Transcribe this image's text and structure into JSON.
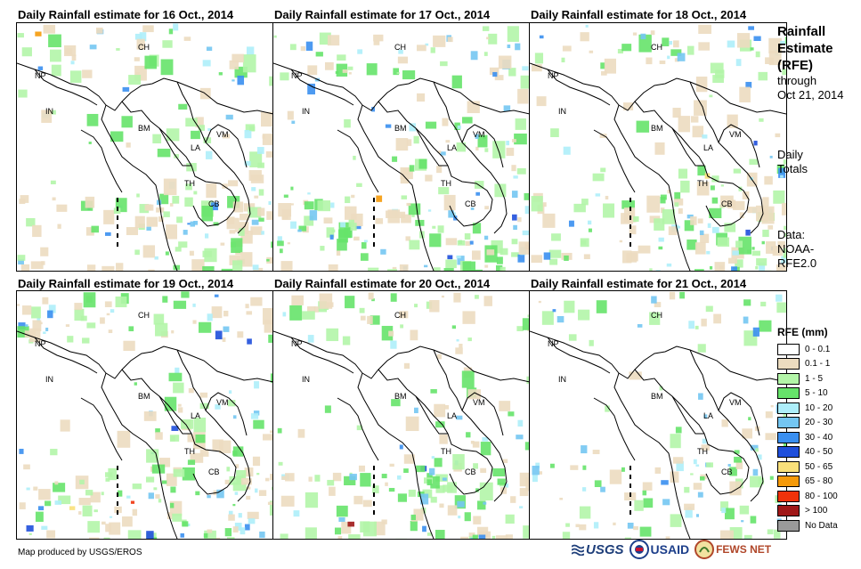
{
  "panels": [
    {
      "title": "Daily Rainfall estimate for 16 Oct., 2014",
      "seed": 16,
      "intensity": 0.9
    },
    {
      "title": "Daily Rainfall estimate for 17 Oct., 2014",
      "seed": 17,
      "intensity": 1.0
    },
    {
      "title": "Daily Rainfall estimate for 18 Oct., 2014",
      "seed": 18,
      "intensity": 0.95
    },
    {
      "title": "Daily Rainfall estimate for 19 Oct., 2014",
      "seed": 19,
      "intensity": 1.0
    },
    {
      "title": "Daily Rainfall estimate for 20 Oct., 2014",
      "seed": 20,
      "intensity": 0.85
    },
    {
      "title": "Daily Rainfall estimate for 21 Oct., 2014",
      "seed": 21,
      "intensity": 0.6
    }
  ],
  "country_labels": [
    "CH",
    "NP",
    "IN",
    "BM",
    "LA",
    "VM",
    "TH",
    "CB"
  ],
  "side": {
    "title_lines": [
      "Rainfall",
      "Estimate",
      "(RFE)"
    ],
    "through": "through",
    "date": "Oct 21, 2014",
    "totals_lines": [
      "Daily",
      "Totals"
    ],
    "data_lines": [
      "Data:",
      "NOAA-",
      "RFE2.0"
    ]
  },
  "legend": {
    "title": "RFE (mm)",
    "items": [
      {
        "label": "0 - 0.1",
        "color": "#ffffff"
      },
      {
        "label": "0.1 - 1",
        "color": "#ecdcc0"
      },
      {
        "label": "1 - 5",
        "color": "#b3f5a8"
      },
      {
        "label": "5 - 10",
        "color": "#66e36a"
      },
      {
        "label": "10 - 20",
        "color": "#aeeefa"
      },
      {
        "label": "20 - 30",
        "color": "#74c6f2"
      },
      {
        "label": "30 - 40",
        "color": "#3a8ff0"
      },
      {
        "label": "40 - 50",
        "color": "#1f4fdb"
      },
      {
        "label": "50 - 65",
        "color": "#f9e07a"
      },
      {
        "label": "65 - 80",
        "color": "#f59a0a"
      },
      {
        "label": "80 - 100",
        "color": "#f0320a"
      },
      {
        "label": "> 100",
        "color": "#a01818"
      },
      {
        "label": "No Data",
        "color": "#9a9a9a"
      }
    ]
  },
  "footer": "Map produced by USGS/EROS",
  "logos": {
    "usgs": "USGS",
    "usaid": "USAID",
    "fews": "FEWS NET"
  }
}
